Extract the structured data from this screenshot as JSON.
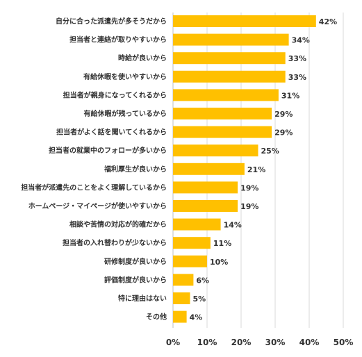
{
  "chart_data": {
    "type": "bar",
    "orientation": "horizontal",
    "categories": [
      "自分に合った派遣先が多そうだから",
      "担当者と連絡が取りやすいから",
      "時給が良いから",
      "有給休暇を使いやすいから",
      "担当者が親身になってくれるから",
      "有給休暇が残っているから",
      "担当者がよく話を聞いてくれるから",
      "担当者の就業中のフォローが多いから",
      "福利厚生が良いから",
      "担当者が派遣先のことをよく理解しているから",
      "ホームページ・マイページが使いやすいから",
      "相談や苦情の対応が的確だから",
      "担当者の入れ替わりが少ないから",
      "研修制度が良いから",
      "評価制度が良いから",
      "特に理由はない",
      "その他"
    ],
    "values": [
      42,
      34,
      33,
      33,
      31,
      29,
      29,
      25,
      21,
      19,
      19,
      14,
      11,
      10,
      6,
      5,
      4
    ],
    "value_labels": [
      "42%",
      "34%",
      "33%",
      "33%",
      "31%",
      "29%",
      "29%",
      "25%",
      "21%",
      "19%",
      "19%",
      "14%",
      "11%",
      "10%",
      "6%",
      "5%",
      "4%"
    ],
    "xlim": [
      0,
      50
    ],
    "xticks": [
      0,
      10,
      20,
      30,
      40,
      50
    ],
    "xtick_labels": [
      "0%",
      "10%",
      "20%",
      "30%",
      "40%",
      "50%"
    ],
    "title": "",
    "xlabel": "",
    "ylabel": "",
    "grid": true,
    "legend": "none",
    "bar_color": "#FFC000",
    "grid_color": "#D9D9D9",
    "text_color": "#333333"
  }
}
